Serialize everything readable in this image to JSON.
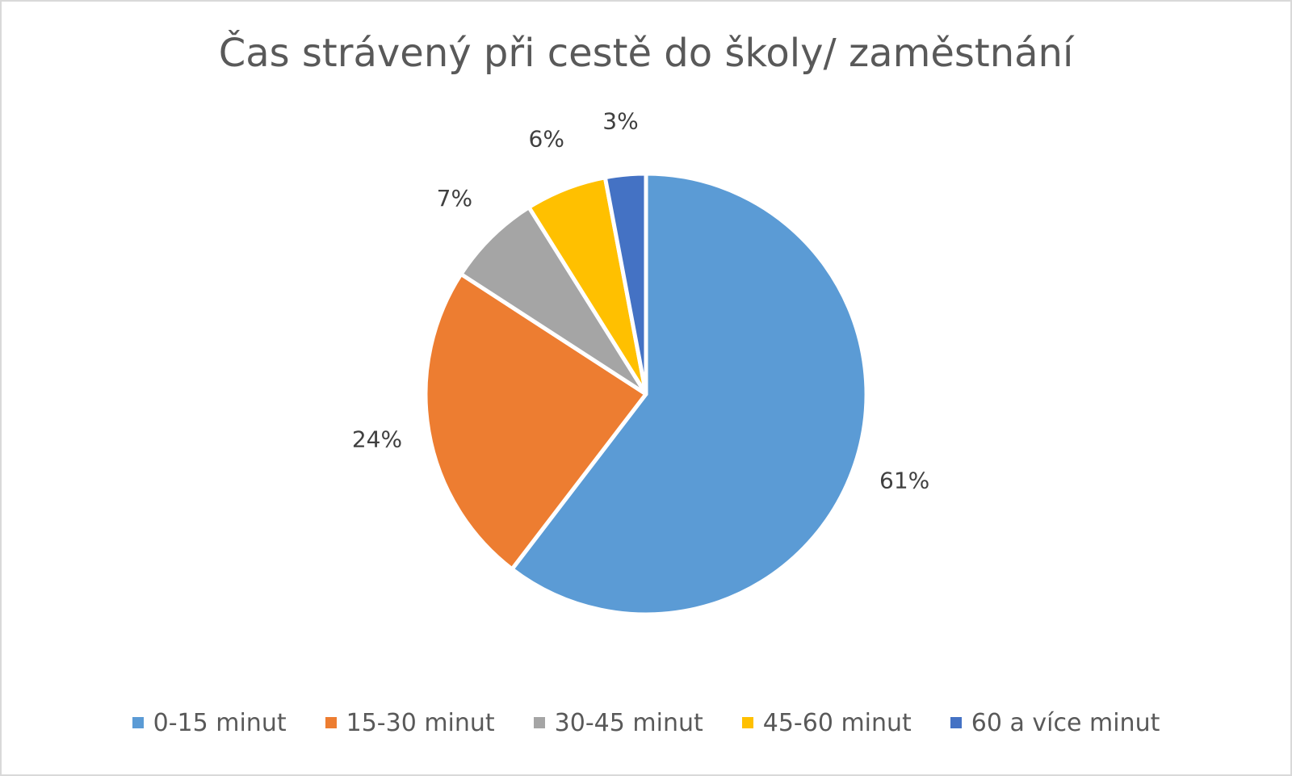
{
  "chart_data": {
    "type": "pie",
    "title": "Čas strávený při cestě do školy/ zaměstnání",
    "categories": [
      "0-15 minut",
      "15-30 minut",
      "30-45 minut",
      "45-60 minut",
      "60 a více minut"
    ],
    "values": [
      61,
      24,
      7,
      6,
      3
    ],
    "labels": [
      "61%",
      "24%",
      "7%",
      "6%",
      "3%"
    ],
    "colors": [
      "#5b9bd5",
      "#ed7d31",
      "#a5a5a5",
      "#ffc000",
      "#4472c4"
    ],
    "legend_position": "bottom"
  }
}
